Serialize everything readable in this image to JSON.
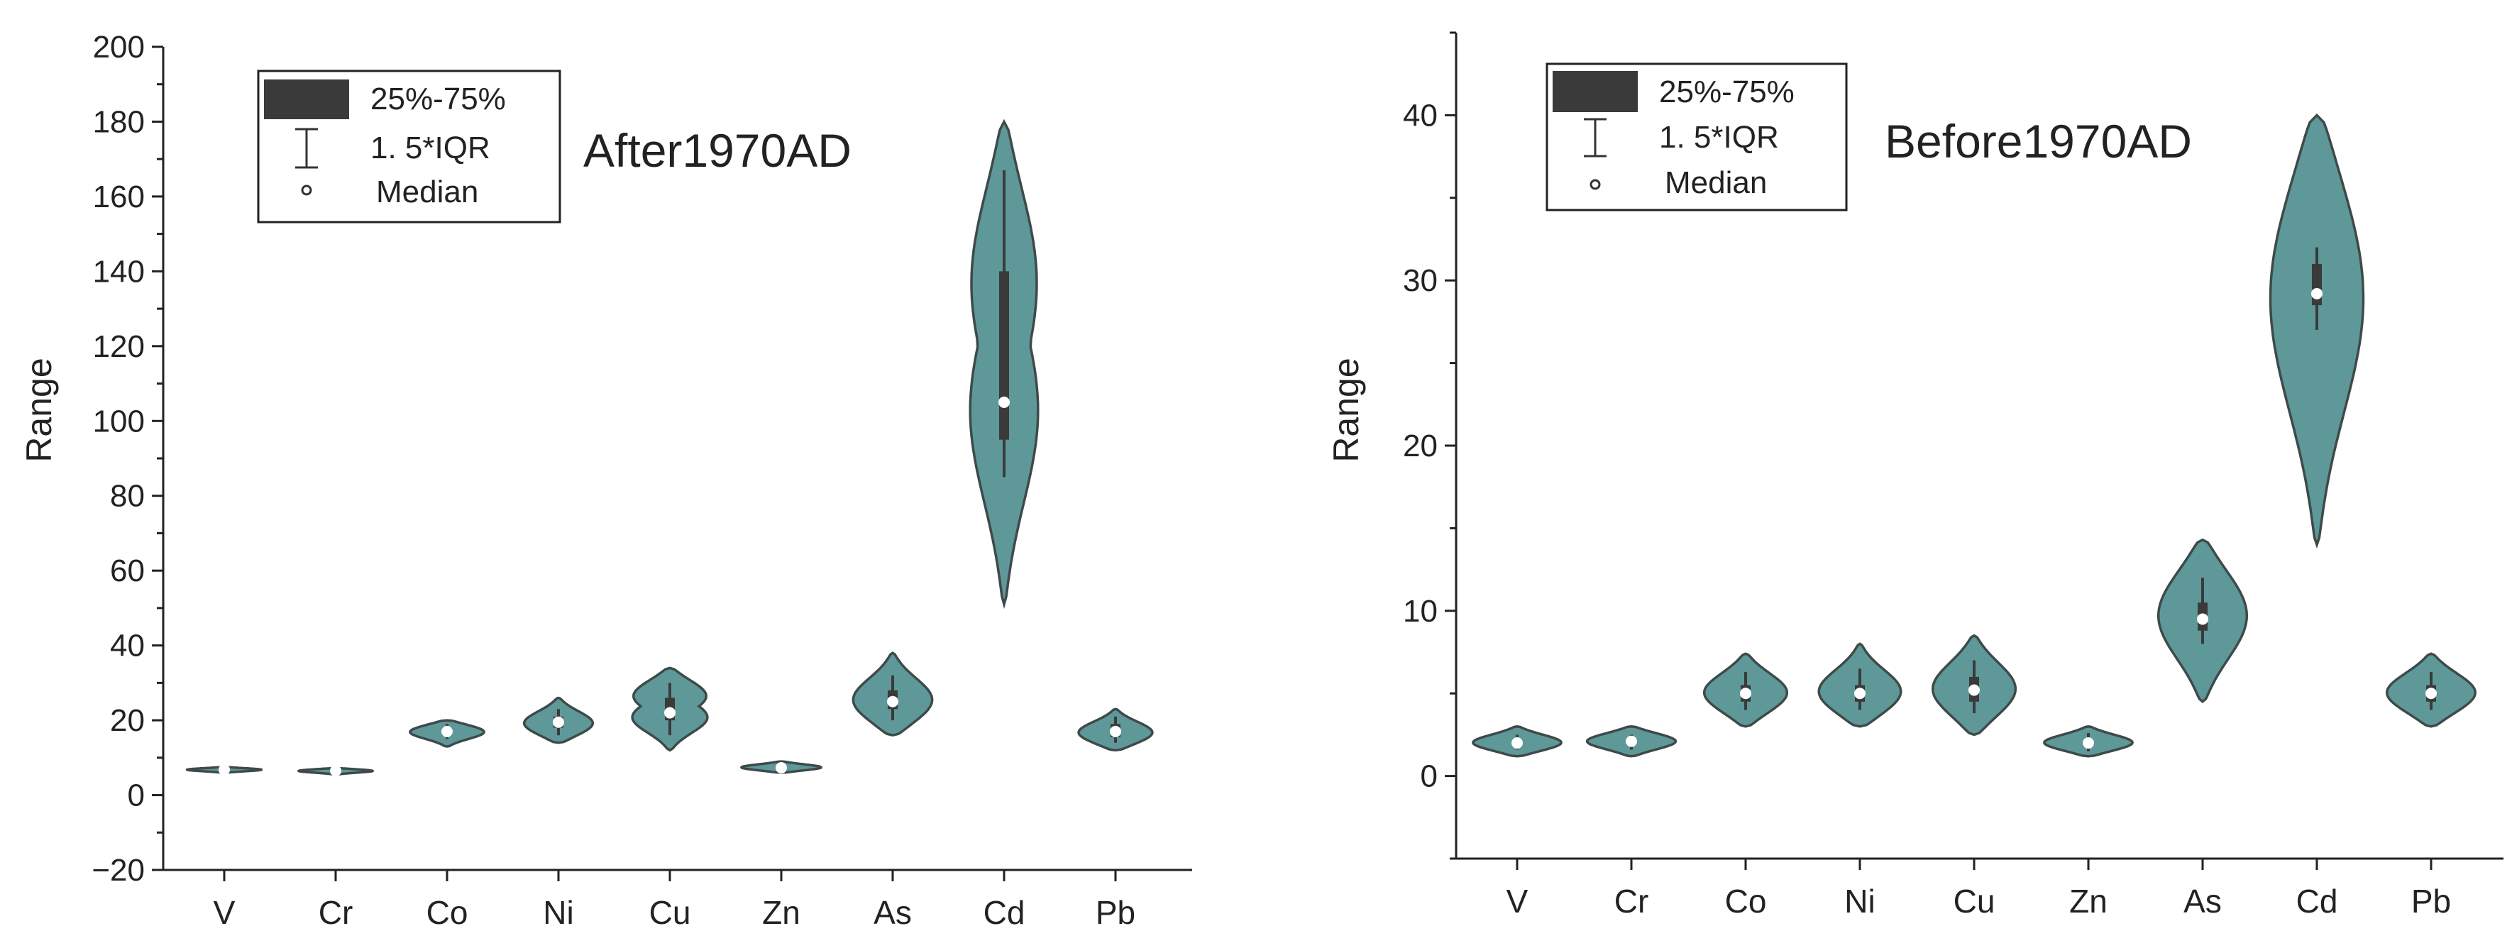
{
  "colors": {
    "violin_fill": "#5f9899",
    "violin_stroke": "#3e4a4a",
    "box": "#3a3a3a",
    "median": "#ffffff",
    "axis": "#222222"
  },
  "legend": {
    "box_label": "25%-75%",
    "whisker_label": "1. 5*IQR",
    "median_label": "Median"
  },
  "chart_data": [
    {
      "type": "violin",
      "title": "After1970AD",
      "xlabel": "",
      "ylabel": "Range",
      "ylim": [
        -20,
        200
      ],
      "yticks": [
        -20,
        0,
        20,
        40,
        60,
        80,
        100,
        120,
        140,
        160,
        180,
        200
      ],
      "categories": [
        "V",
        "Cr",
        "Co",
        "Ni",
        "Cu",
        "Zn",
        "As",
        "Cd",
        "Pb"
      ],
      "series": [
        {
          "name": "V",
          "min": 6,
          "max": 7.5,
          "q1": 6.6,
          "q3": 7,
          "whisker_low": 6.4,
          "whisker_high": 7.2,
          "median": 6.8,
          "modes": [
            6.8
          ],
          "width": 0.7
        },
        {
          "name": "Cr",
          "min": 5.5,
          "max": 7.2,
          "q1": 6.2,
          "q3": 6.8,
          "whisker_low": 6,
          "whisker_high": 7,
          "median": 6.5,
          "modes": [
            6.5
          ],
          "width": 0.7
        },
        {
          "name": "Co",
          "min": 13,
          "max": 20,
          "q1": 16,
          "q3": 18,
          "whisker_low": 15,
          "whisker_high": 19,
          "median": 17,
          "modes": [
            17
          ],
          "width": 0.7
        },
        {
          "name": "Ni",
          "min": 14,
          "max": 26,
          "q1": 18,
          "q3": 21,
          "whisker_low": 16,
          "whisker_high": 23,
          "median": 19.5,
          "modes": [
            19
          ],
          "width": 0.65
        },
        {
          "name": "Cu",
          "min": 12,
          "max": 34,
          "q1": 20,
          "q3": 26,
          "whisker_low": 16,
          "whisker_high": 30,
          "median": 22,
          "modes": [
            20.5,
            27
          ],
          "width": 0.72
        },
        {
          "name": "Zn",
          "min": 6,
          "max": 9,
          "q1": 7,
          "q3": 7.8,
          "whisker_low": 6.5,
          "whisker_high": 8.5,
          "median": 7.3,
          "modes": [
            7.4
          ],
          "width": 0.75
        },
        {
          "name": "As",
          "min": 16,
          "max": 38,
          "q1": 23,
          "q3": 28,
          "whisker_low": 20,
          "whisker_high": 32,
          "median": 25,
          "modes": [
            25
          ],
          "width": 0.75
        },
        {
          "name": "Cd",
          "min": 51,
          "max": 180,
          "q1": 95,
          "q3": 140,
          "whisker_low": 85,
          "whisker_high": 167,
          "median": 105,
          "modes": [
            101,
            140
          ],
          "width": 0.65
        },
        {
          "name": "Pb",
          "min": 12,
          "max": 23,
          "q1": 15.5,
          "q3": 19,
          "whisker_low": 14,
          "whisker_high": 21,
          "median": 17,
          "modes": [
            16.5
          ],
          "width": 0.7
        }
      ]
    },
    {
      "type": "violin",
      "title": "Before1970AD",
      "xlabel": "",
      "ylabel": "Range",
      "ylim": [
        -5,
        45
      ],
      "yticks": [
        0,
        10,
        20,
        30,
        40
      ],
      "minor_yticks": [
        -5,
        5,
        15,
        25,
        35,
        45
      ],
      "categories": [
        "V",
        "Cr",
        "Co",
        "Ni",
        "Cu",
        "Zn",
        "As",
        "Cd",
        "Pb"
      ],
      "series": [
        {
          "name": "V",
          "min": 1.2,
          "max": 3,
          "q1": 1.9,
          "q3": 2.2,
          "whisker_low": 1.6,
          "whisker_high": 2.5,
          "median": 2,
          "modes": [
            2
          ],
          "width": 0.8
        },
        {
          "name": "Cr",
          "min": 1.2,
          "max": 3,
          "q1": 1.9,
          "q3": 2.2,
          "whisker_low": 1.6,
          "whisker_high": 2.5,
          "median": 2.1,
          "modes": [
            2.1
          ],
          "width": 0.8
        },
        {
          "name": "Co",
          "min": 3,
          "max": 7.4,
          "q1": 4.5,
          "q3": 5.5,
          "whisker_low": 4,
          "whisker_high": 6.3,
          "median": 5,
          "modes": [
            5
          ],
          "width": 0.75
        },
        {
          "name": "Ni",
          "min": 3,
          "max": 8,
          "q1": 4.5,
          "q3": 5.5,
          "whisker_low": 4,
          "whisker_high": 6.5,
          "median": 5,
          "modes": [
            5
          ],
          "width": 0.75
        },
        {
          "name": "Cu",
          "min": 2.5,
          "max": 8.5,
          "q1": 4.5,
          "q3": 6,
          "whisker_low": 3.8,
          "whisker_high": 7,
          "median": 5.2,
          "modes": [
            5.2
          ],
          "width": 0.75
        },
        {
          "name": "Zn",
          "min": 1.2,
          "max": 3,
          "q1": 1.8,
          "q3": 2.2,
          "whisker_low": 1.5,
          "whisker_high": 2.6,
          "median": 2,
          "modes": [
            2
          ],
          "width": 0.8
        },
        {
          "name": "As",
          "min": 4.5,
          "max": 14.3,
          "q1": 8.8,
          "q3": 10.5,
          "whisker_low": 8,
          "whisker_high": 12,
          "median": 9.5,
          "modes": [
            9.8
          ],
          "width": 0.8
        },
        {
          "name": "Cd",
          "min": 14,
          "max": 40,
          "q1": 28.5,
          "q3": 31,
          "whisker_low": 27,
          "whisker_high": 32,
          "median": 29.2,
          "modes": [
            29.5
          ],
          "width": 0.85
        },
        {
          "name": "Pb",
          "min": 3,
          "max": 7.4,
          "q1": 4.5,
          "q3": 5.5,
          "whisker_low": 4,
          "whisker_high": 6.3,
          "median": 5,
          "modes": [
            5
          ],
          "width": 0.8
        }
      ]
    }
  ]
}
